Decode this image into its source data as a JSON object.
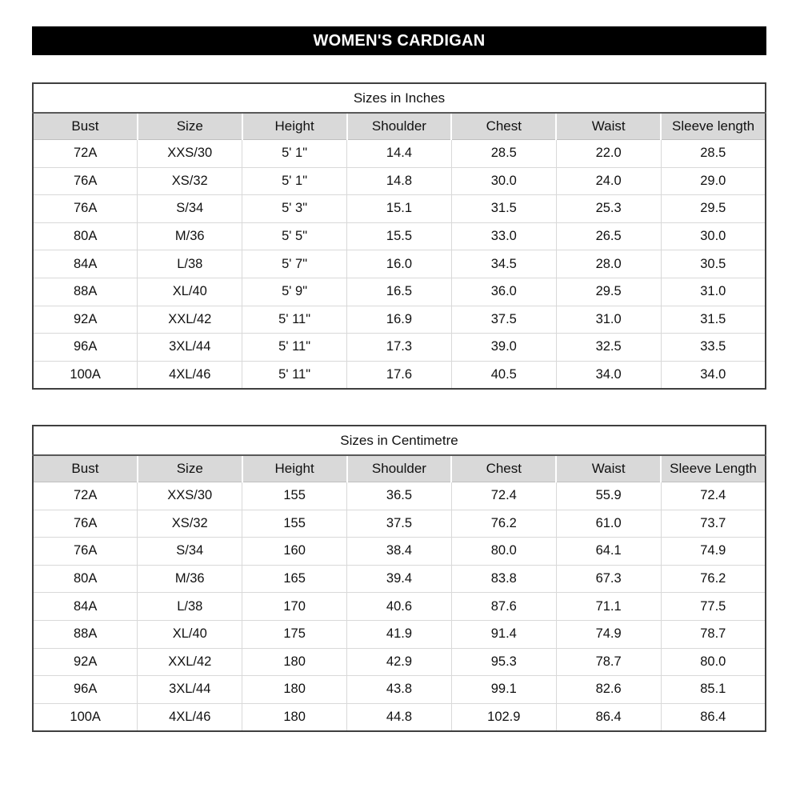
{
  "page_title": "WOMEN'S CARDIGAN",
  "colors": {
    "title_bar_bg": "#000000",
    "title_bar_text": "#ffffff",
    "header_row_bg": "#d9d9d9",
    "grid_line": "#d9d9d9",
    "outer_border": "#3f3f3f",
    "text": "#111111"
  },
  "tables": [
    {
      "title": "Sizes in Inches",
      "columns": [
        "Bust",
        "Size",
        "Height",
        "Shoulder",
        "Chest",
        "Waist",
        "Sleeve length"
      ],
      "rows": [
        [
          "72A",
          "XXS/30",
          "5' 1\"",
          "14.4",
          "28.5",
          "22.0",
          "28.5"
        ],
        [
          "76A",
          "XS/32",
          "5' 1\"",
          "14.8",
          "30.0",
          "24.0",
          "29.0"
        ],
        [
          "76A",
          "S/34",
          "5' 3\"",
          "15.1",
          "31.5",
          "25.3",
          "29.5"
        ],
        [
          "80A",
          "M/36",
          "5' 5\"",
          "15.5",
          "33.0",
          "26.5",
          "30.0"
        ],
        [
          "84A",
          "L/38",
          "5' 7\"",
          "16.0",
          "34.5",
          "28.0",
          "30.5"
        ],
        [
          "88A",
          "XL/40",
          "5' 9\"",
          "16.5",
          "36.0",
          "29.5",
          "31.0"
        ],
        [
          "92A",
          "XXL/42",
          "5' 11\"",
          "16.9",
          "37.5",
          "31.0",
          "31.5"
        ],
        [
          "96A",
          "3XL/44",
          "5' 11\"",
          "17.3",
          "39.0",
          "32.5",
          "33.5"
        ],
        [
          "100A",
          "4XL/46",
          "5' 11\"",
          "17.6",
          "40.5",
          "34.0",
          "34.0"
        ]
      ]
    },
    {
      "title": "Sizes in Centimetre",
      "columns": [
        "Bust",
        "Size",
        "Height",
        "Shoulder",
        "Chest",
        "Waist",
        "Sleeve Length"
      ],
      "rows": [
        [
          "72A",
          "XXS/30",
          "155",
          "36.5",
          "72.4",
          "55.9",
          "72.4"
        ],
        [
          "76A",
          "XS/32",
          "155",
          "37.5",
          "76.2",
          "61.0",
          "73.7"
        ],
        [
          "76A",
          "S/34",
          "160",
          "38.4",
          "80.0",
          "64.1",
          "74.9"
        ],
        [
          "80A",
          "M/36",
          "165",
          "39.4",
          "83.8",
          "67.3",
          "76.2"
        ],
        [
          "84A",
          "L/38",
          "170",
          "40.6",
          "87.6",
          "71.1",
          "77.5"
        ],
        [
          "88A",
          "XL/40",
          "175",
          "41.9",
          "91.4",
          "74.9",
          "78.7"
        ],
        [
          "92A",
          "XXL/42",
          "180",
          "42.9",
          "95.3",
          "78.7",
          "80.0"
        ],
        [
          "96A",
          "3XL/44",
          "180",
          "43.8",
          "99.1",
          "82.6",
          "85.1"
        ],
        [
          "100A",
          "4XL/46",
          "180",
          "44.8",
          "102.9",
          "86.4",
          "86.4"
        ]
      ]
    }
  ]
}
